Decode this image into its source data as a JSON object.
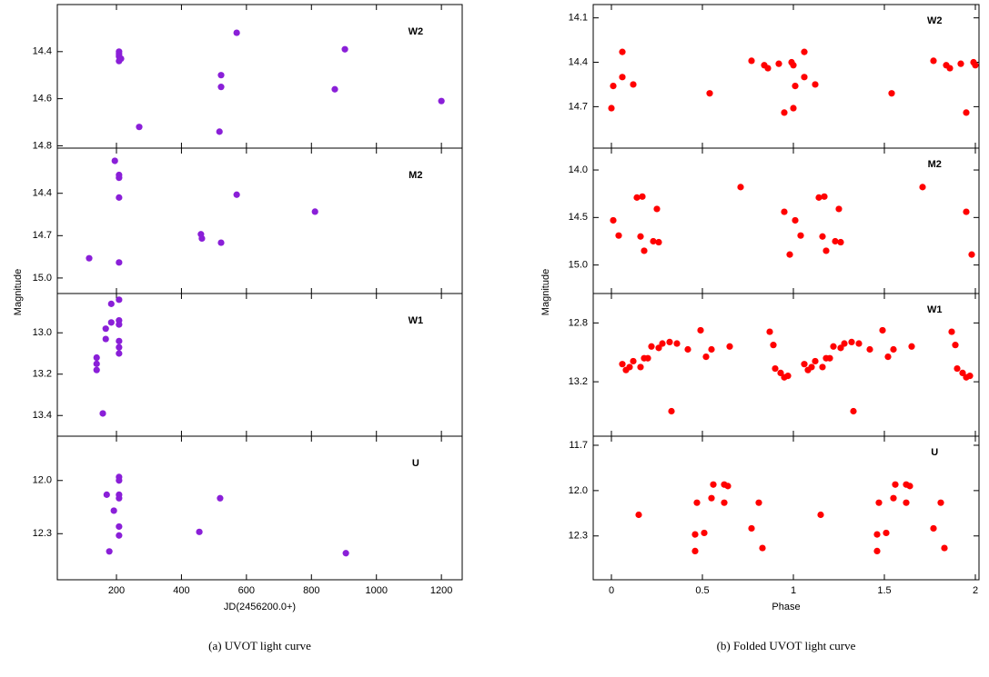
{
  "chart_data": [
    {
      "type": "scatter",
      "caption": "(a) UVOT light curve",
      "xlabel": "JD(2456200.0+)",
      "ylabel": "Magnitude",
      "color": "#8a1fd8",
      "xlim": [
        18,
        1264
      ],
      "xticks": [
        200,
        400,
        600,
        800,
        1000,
        1200
      ],
      "panels": [
        {
          "label": "W2",
          "ylim": [
            14.81,
            14.2
          ],
          "yticks": [
            14.4,
            14.6,
            14.8
          ],
          "x": [
            208,
            208,
            208,
            208,
            214,
            270,
            522,
            522,
            517,
            570,
            872,
            903,
            1200
          ],
          "values": [
            14.4,
            14.42,
            14.44,
            14.41,
            14.43,
            14.72,
            14.5,
            14.55,
            14.74,
            14.32,
            14.56,
            14.39,
            14.61
          ]
        },
        {
          "label": "M2",
          "ylim": [
            15.11,
            14.08
          ],
          "yticks": [
            14.4,
            14.7,
            {
              "value": 15,
              "label": "15.0"
            }
          ],
          "x": [
            195,
            208,
            208,
            208,
            208,
            570,
            460,
            463,
            522,
            811,
            116
          ],
          "values": [
            14.17,
            14.27,
            14.29,
            14.43,
            14.89,
            14.41,
            14.69,
            14.72,
            14.75,
            14.53,
            14.86
          ]
        },
        {
          "label": "W1",
          "ylim": [
            13.5,
            12.81
          ],
          "yticks": [
            {
              "value": 13,
              "label": "13.0"
            },
            13.2,
            13.4
          ],
          "x": [
            139,
            139,
            139,
            167,
            167,
            184,
            184,
            208,
            208,
            208,
            208,
            208,
            208,
            158
          ],
          "values": [
            13.12,
            13.15,
            13.18,
            13.03,
            12.98,
            12.95,
            12.86,
            12.84,
            12.94,
            12.96,
            13.04,
            13.07,
            13.1,
            13.39
          ]
        },
        {
          "label": "U",
          "ylim": [
            12.56,
            11.75
          ],
          "yticks": [
            {
              "value": 12,
              "label": "12.0"
            },
            12.3
          ],
          "x": [
            170,
            178,
            192,
            208,
            208,
            208,
            208,
            208,
            208,
            455,
            519,
            906
          ],
          "values": [
            12.08,
            12.4,
            12.17,
            11.98,
            12.0,
            12.08,
            12.1,
            12.26,
            12.31,
            12.29,
            12.1,
            12.41
          ]
        }
      ]
    },
    {
      "type": "scatter",
      "caption": "(b) Folded UVOT light curve",
      "xlabel": "Phase",
      "ylabel": "Magnitude",
      "color": "#ff0000",
      "xlim": [
        -0.1,
        2.02
      ],
      "xticks": [
        0,
        0.5,
        1,
        1.5,
        2
      ],
      "panels": [
        {
          "label": "W2",
          "ylim": [
            14.98,
            14.01
          ],
          "yticks": [
            14.1,
            14.4,
            14.7
          ],
          "x": [
            0.0,
            0.01,
            0.06,
            0.06,
            0.12,
            0.54,
            0.77,
            0.84,
            0.86,
            0.92,
            0.99,
            1.0,
            0.95,
            1.0,
            1.01,
            1.06,
            1.06,
            1.12,
            1.54,
            1.77,
            1.84,
            1.86,
            1.92,
            1.99,
            2.0,
            1.95
          ],
          "values": [
            14.71,
            14.56,
            14.33,
            14.5,
            14.55,
            14.61,
            14.39,
            14.42,
            14.44,
            14.41,
            14.4,
            14.42,
            14.74,
            14.71,
            14.56,
            14.33,
            14.5,
            14.55,
            14.61,
            14.39,
            14.42,
            14.44,
            14.41,
            14.4,
            14.42,
            14.74
          ]
        },
        {
          "label": "M2",
          "ylim": [
            15.3,
            13.77
          ],
          "yticks": [
            {
              "value": 14,
              "label": "14.0"
            },
            14.5,
            {
              "value": 15,
              "label": "15.0"
            }
          ],
          "x": [
            0.01,
            0.04,
            0.14,
            0.17,
            0.16,
            0.18,
            0.23,
            0.25,
            0.26,
            0.71,
            0.95,
            0.98,
            1.01,
            1.04,
            1.14,
            1.17,
            1.16,
            1.18,
            1.23,
            1.25,
            1.26,
            1.71,
            1.95,
            1.98
          ],
          "values": [
            14.53,
            14.69,
            14.29,
            14.28,
            14.7,
            14.85,
            14.75,
            14.41,
            14.76,
            14.18,
            14.44,
            14.89,
            14.53,
            14.69,
            14.29,
            14.28,
            14.7,
            14.85,
            14.75,
            14.41,
            14.76,
            14.18,
            14.44,
            14.89
          ]
        },
        {
          "label": "W1",
          "ylim": [
            13.57,
            12.6
          ],
          "yticks": [
            12.8,
            13.2
          ],
          "x": [
            0.06,
            0.08,
            0.1,
            0.12,
            0.16,
            0.18,
            0.2,
            0.22,
            0.26,
            0.28,
            0.32,
            0.33,
            0.36,
            0.42,
            0.49,
            0.52,
            0.55,
            0.65,
            0.87,
            0.89,
            0.9,
            0.93,
            0.95,
            0.97,
            1.06,
            1.08,
            1.1,
            1.12,
            1.16,
            1.18,
            1.2,
            1.22,
            1.26,
            1.28,
            1.32,
            1.33,
            1.36,
            1.42,
            1.49,
            1.52,
            1.55,
            1.65,
            1.87,
            1.89,
            1.9,
            1.93,
            1.95,
            1.97
          ],
          "values": [
            13.08,
            13.12,
            13.1,
            13.06,
            13.1,
            13.04,
            13.04,
            12.96,
            12.97,
            12.94,
            12.93,
            13.4,
            12.94,
            12.98,
            12.85,
            13.03,
            12.98,
            12.96,
            12.86,
            12.95,
            13.11,
            13.14,
            13.17,
            13.16,
            13.08,
            13.12,
            13.1,
            13.06,
            13.1,
            13.04,
            13.04,
            12.96,
            12.97,
            12.94,
            12.93,
            13.4,
            12.94,
            12.98,
            12.85,
            13.03,
            12.98,
            12.96,
            12.86,
            12.95,
            13.11,
            13.14,
            13.17,
            13.16
          ]
        },
        {
          "label": "U",
          "ylim": [
            12.59,
            11.64
          ],
          "yticks": [
            11.7,
            {
              "value": 12,
              "label": "12.0"
            },
            12.3
          ],
          "x": [
            0.15,
            0.46,
            0.46,
            0.47,
            0.51,
            0.55,
            0.56,
            0.62,
            0.62,
            0.64,
            0.77,
            0.81,
            0.83,
            1.15,
            1.46,
            1.46,
            1.47,
            1.51,
            1.55,
            1.56,
            1.62,
            1.62,
            1.64,
            1.77,
            1.81,
            1.83
          ],
          "values": [
            12.16,
            12.29,
            12.4,
            12.08,
            12.28,
            12.05,
            11.96,
            12.08,
            11.96,
            11.97,
            12.25,
            12.08,
            12.38,
            12.16,
            12.29,
            12.4,
            12.08,
            12.28,
            12.05,
            11.96,
            12.08,
            11.96,
            11.97,
            12.25,
            12.08,
            12.38
          ]
        }
      ]
    }
  ]
}
